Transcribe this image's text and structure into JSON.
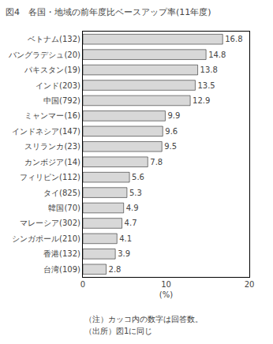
{
  "chart_data": {
    "type": "bar",
    "orientation": "horizontal",
    "title": "図4　各国・地域の前年度比ベースアップ率(11年度)",
    "categories": [
      "ベトナム(132)",
      "バングラデシュ(20)",
      "パキスタン(19)",
      "インド(203)",
      "中国(792)",
      "ミャンマー(16)",
      "インドネシア(147)",
      "スリランカ(23)",
      "カンボジア(14)",
      "フィリピン(112)",
      "タイ(825)",
      "韓国(70)",
      "マレーシア(302)",
      "シンガポール(210)",
      "香港(132)",
      "台湾(109)"
    ],
    "values": [
      16.8,
      14.8,
      13.8,
      13.5,
      12.9,
      9.9,
      9.6,
      9.5,
      7.8,
      5.6,
      5.3,
      4.9,
      4.7,
      4.1,
      3.9,
      2.8
    ],
    "color": "#d8d8d8",
    "xlabel": "(%)",
    "xlim": [
      0,
      20
    ],
    "xticks": [
      0,
      10,
      20
    ],
    "data_labels": true,
    "grid": false,
    "annotations": [
      "（注）カッコ内の数字は回答数。",
      "（出所）図1に同じ"
    ]
  }
}
